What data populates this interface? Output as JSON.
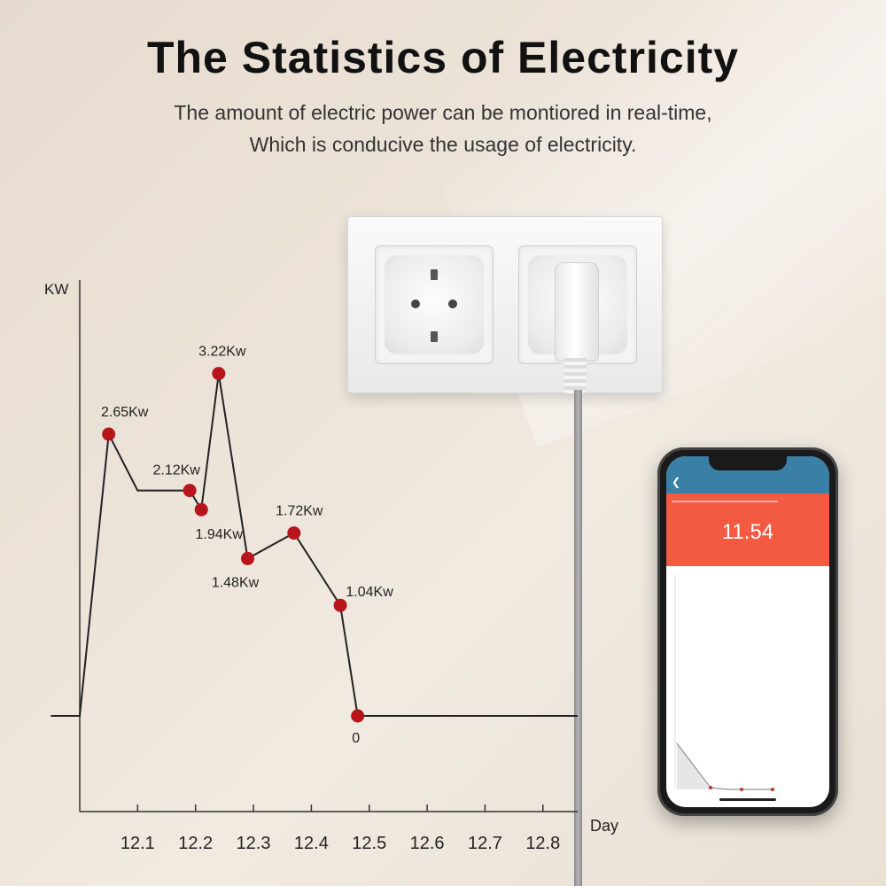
{
  "header": {
    "title": "The Statistics of Electricity",
    "subtitle_line1": "The amount of electric power can be montiored in real-time,",
    "subtitle_line2": "Which is conducive the usage of electricity."
  },
  "phone": {
    "reading": "11.54",
    "bar_color": "#3a7fa6",
    "banner_color": "#f25a42"
  },
  "chart_data": {
    "type": "line",
    "ylabel": "KW",
    "xlabel": "Day",
    "xticks": [
      12.1,
      12.2,
      12.3,
      12.4,
      12.5,
      12.6,
      12.7,
      12.8
    ],
    "xlim": [
      12.0,
      12.86
    ],
    "ylim": [
      -0.9,
      4.1
    ],
    "point_color": "#b8141b",
    "line_color": "#222222",
    "points": [
      {
        "x": 12.05,
        "y": 2.65,
        "label": "2.65Kw"
      },
      {
        "x": 12.19,
        "y": 2.12,
        "label": "2.12Kw"
      },
      {
        "x": 12.21,
        "y": 1.94,
        "label": "1.94Kw"
      },
      {
        "x": 12.24,
        "y": 3.22,
        "label": "3.22Kw"
      },
      {
        "x": 12.29,
        "y": 1.48,
        "label": "1.48Kw"
      },
      {
        "x": 12.37,
        "y": 1.72,
        "label": "1.72Kw"
      },
      {
        "x": 12.45,
        "y": 1.04,
        "label": "1.04Kw"
      },
      {
        "x": 12.48,
        "y": 0,
        "label": "0"
      }
    ],
    "line_path": [
      {
        "x": 11.95,
        "y": 0
      },
      {
        "x": 12.0,
        "y": 0
      },
      {
        "x": 12.05,
        "y": 2.65
      },
      {
        "x": 12.1,
        "y": 2.12
      },
      {
        "x": 12.19,
        "y": 2.12
      },
      {
        "x": 12.21,
        "y": 1.94
      },
      {
        "x": 12.24,
        "y": 3.22
      },
      {
        "x": 12.29,
        "y": 1.48
      },
      {
        "x": 12.37,
        "y": 1.72
      },
      {
        "x": 12.45,
        "y": 1.04
      },
      {
        "x": 12.48,
        "y": 0
      },
      {
        "x": 12.86,
        "y": 0
      }
    ]
  }
}
